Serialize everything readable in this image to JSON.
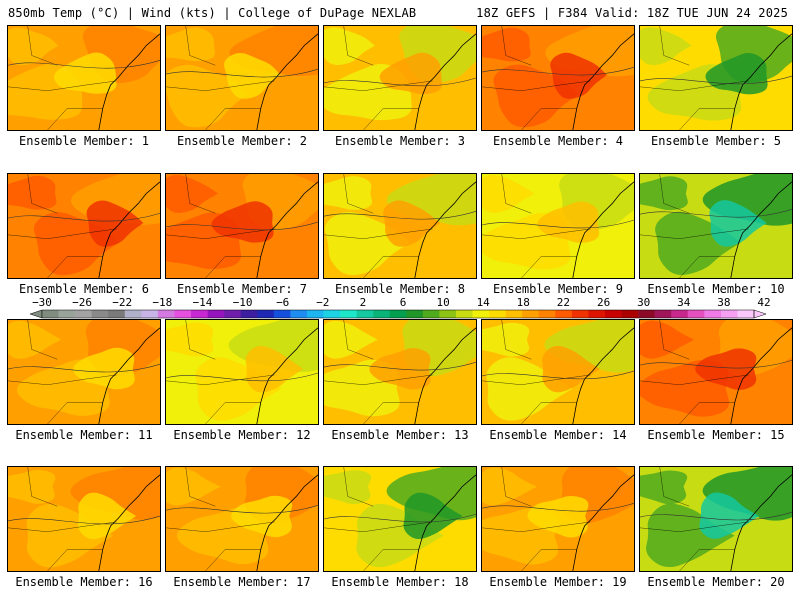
{
  "header": {
    "left": "850mb Temp (°C) | Wind (kts) | College of DuPage NEXLAB",
    "right": "18Z GEFS | F384 Valid: 18Z TUE JUN 24 2025"
  },
  "colorbar": {
    "labels": [
      "−30",
      "−26",
      "−22",
      "−18",
      "−14",
      "−10",
      "−6",
      "−2",
      "2",
      "6",
      "10",
      "14",
      "18",
      "22",
      "26",
      "30",
      "34",
      "38",
      "42"
    ],
    "colors": [
      "#7f8c7f",
      "#9aa39a",
      "#a3a3a3",
      "#8a8a8a",
      "#7a7a7a",
      "#b0b0c8",
      "#c8b4e6",
      "#d27ae0",
      "#e650e0",
      "#c828d2",
      "#9614be",
      "#6e1eaa",
      "#3c1ea0",
      "#1e28b4",
      "#1450dc",
      "#1e8cf0",
      "#1eb4f0",
      "#1ed2e6",
      "#1ee6c8",
      "#14c8a0",
      "#0ab478",
      "#00a050",
      "#1e9628",
      "#50aa1e",
      "#8cc314",
      "#c8dc14",
      "#f0f00a",
      "#ffdc00",
      "#ffbe00",
      "#ffa000",
      "#ff8200",
      "#ff5a00",
      "#f03200",
      "#dc1400",
      "#c80000",
      "#aa0000",
      "#8c0a28",
      "#a0145a",
      "#c8288c",
      "#e650be",
      "#f07ae6",
      "#f5a0f0",
      "#fac8fa"
    ]
  },
  "panels": [
    {
      "caption": "Ensemble Member: 1",
      "palette": "warm"
    },
    {
      "caption": "Ensemble Member: 2",
      "palette": "warm"
    },
    {
      "caption": "Ensemble Member: 3",
      "palette": "mixed"
    },
    {
      "caption": "Ensemble Member: 4",
      "palette": "hot"
    },
    {
      "caption": "Ensemble Member: 5",
      "palette": "green"
    },
    {
      "caption": "Ensemble Member: 6",
      "palette": "hot"
    },
    {
      "caption": "Ensemble Member: 7",
      "palette": "hot"
    },
    {
      "caption": "Ensemble Member: 8",
      "palette": "mixed"
    },
    {
      "caption": "Ensemble Member: 9",
      "palette": "yellow"
    },
    {
      "caption": "Ensemble Member: 10",
      "palette": "teal"
    },
    {
      "caption": "Ensemble Member: 11",
      "palette": "warm"
    },
    {
      "caption": "Ensemble Member: 12",
      "palette": "yellow"
    },
    {
      "caption": "Ensemble Member: 13",
      "palette": "mixed"
    },
    {
      "caption": "Ensemble Member: 14",
      "palette": "mixed"
    },
    {
      "caption": "Ensemble Member: 15",
      "palette": "hot"
    },
    {
      "caption": "Ensemble Member: 16",
      "palette": "warm"
    },
    {
      "caption": "Ensemble Member: 17",
      "palette": "warm"
    },
    {
      "caption": "Ensemble Member: 18",
      "palette": "green"
    },
    {
      "caption": "Ensemble Member: 19",
      "palette": "warm"
    },
    {
      "caption": "Ensemble Member: 20",
      "palette": "teal"
    }
  ]
}
